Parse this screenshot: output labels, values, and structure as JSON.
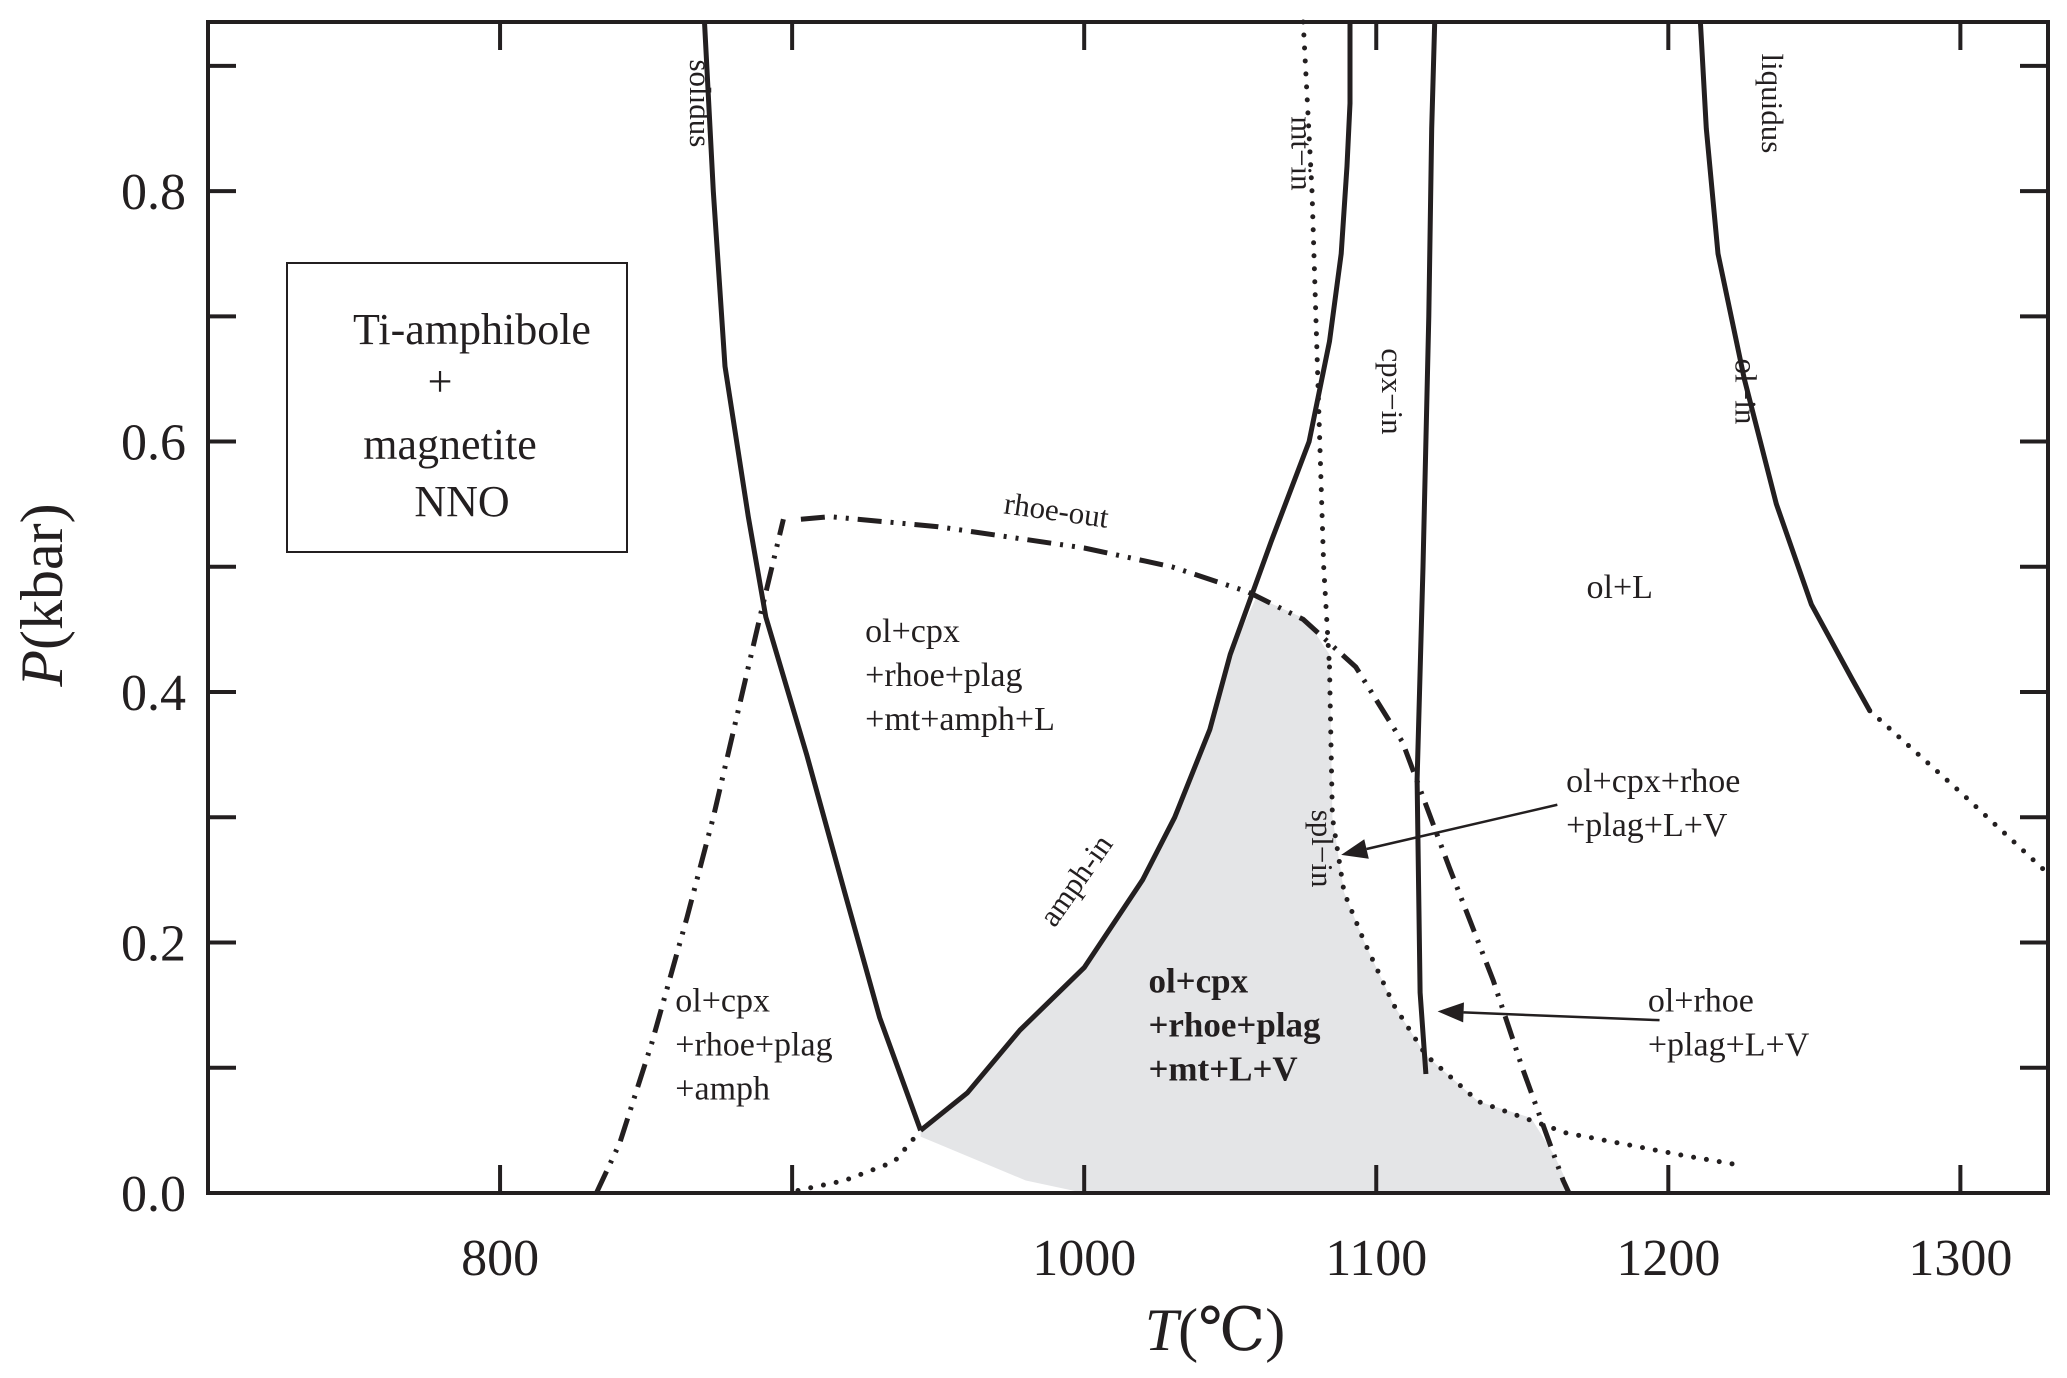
{
  "chart_data": {
    "type": "phase-diagram",
    "title": "",
    "xlabel": {
      "symbol": "T",
      "unit": "(℃)"
    },
    "ylabel": {
      "symbol": "P",
      "unit": "(kbar)"
    },
    "xlim": [
      700,
      1330
    ],
    "ylim": [
      0,
      0.935
    ],
    "x_ticks": [
      800,
      1000,
      1100,
      1200,
      1300
    ],
    "y_ticks": [
      0.0,
      0.2,
      0.4,
      0.6,
      0.8
    ],
    "x_tick_labels": [
      "800",
      "1000",
      "1100",
      "1200",
      "1300"
    ],
    "y_tick_labels": [
      "0.0",
      "0.2",
      "0.4",
      "0.6",
      "0.8"
    ],
    "legend": {
      "line1": "Ti-amphibole",
      "line2": "+",
      "line3": "magnetite",
      "line4": "NNO",
      "placement": "upper-left"
    },
    "curves": [
      {
        "name": "solidus",
        "style": "solid",
        "points": [
          [
            870,
            0.935
          ],
          [
            873,
            0.8
          ],
          [
            877,
            0.66
          ],
          [
            885,
            0.54
          ],
          [
            891,
            0.46
          ],
          [
            905,
            0.35
          ],
          [
            918,
            0.24
          ],
          [
            930,
            0.14
          ],
          [
            944,
            0.05
          ]
        ]
      },
      {
        "name": "amph-in",
        "style": "solid",
        "points": [
          [
            944,
            0.05
          ],
          [
            960,
            0.08
          ],
          [
            978,
            0.13
          ],
          [
            1000,
            0.18
          ],
          [
            1020,
            0.25
          ],
          [
            1031,
            0.3
          ],
          [
            1043,
            0.37
          ],
          [
            1050,
            0.43
          ],
          [
            1064,
            0.52
          ],
          [
            1077,
            0.6
          ],
          [
            1084,
            0.68
          ],
          [
            1088,
            0.75
          ],
          [
            1090,
            0.82
          ],
          [
            1091,
            0.87
          ],
          [
            1091,
            0.935
          ]
        ]
      },
      {
        "name": "cpx-in",
        "style": "solid",
        "points": [
          [
            1117,
            0.095
          ],
          [
            1115,
            0.16
          ],
          [
            1114,
            0.33
          ],
          [
            1116,
            0.5
          ],
          [
            1118,
            0.7
          ],
          [
            1119,
            0.85
          ],
          [
            1120,
            0.935
          ]
        ]
      },
      {
        "name": "liquidus",
        "style": "solid",
        "points": [
          [
            1211,
            0.935
          ],
          [
            1213,
            0.85
          ],
          [
            1217,
            0.75
          ],
          [
            1226,
            0.65
          ],
          [
            1237,
            0.55
          ],
          [
            1249,
            0.47
          ],
          [
            1263,
            0.41
          ],
          [
            1269,
            0.385
          ]
        ]
      },
      {
        "name": "liquidus-extension",
        "style": "dotted",
        "points": [
          [
            1269,
            0.385
          ],
          [
            1300,
            0.32
          ],
          [
            1330,
            0.255
          ]
        ]
      },
      {
        "name": "mt-in",
        "style": "dotted",
        "points": [
          [
            1075,
            0.935
          ],
          [
            1078,
            0.8
          ],
          [
            1080,
            0.65
          ],
          [
            1082,
            0.5
          ],
          [
            1084,
            0.42
          ]
        ]
      },
      {
        "name": "spl-in",
        "style": "dotted",
        "points": [
          [
            1084,
            0.42
          ],
          [
            1085,
            0.3
          ],
          [
            1089,
            0.24
          ],
          [
            1096,
            0.2
          ],
          [
            1106,
            0.15
          ],
          [
            1117,
            0.11
          ],
          [
            1135,
            0.073
          ],
          [
            1165,
            0.048
          ],
          [
            1205,
            0.03
          ],
          [
            1225,
            0.022
          ]
        ]
      },
      {
        "name": "amph-in-extension",
        "style": "dotted",
        "points": [
          [
            902,
            0.002
          ],
          [
            918,
            0.01
          ],
          [
            935,
            0.025
          ],
          [
            944,
            0.05
          ]
        ]
      },
      {
        "name": "rhoe-out",
        "style": "dash-dot-dot",
        "points": [
          [
            903,
            0.538
          ],
          [
            913,
            0.54
          ],
          [
            950,
            0.532
          ],
          [
            1000,
            0.515
          ],
          [
            1030,
            0.5
          ],
          [
            1056,
            0.48
          ],
          [
            1075,
            0.458
          ],
          [
            1093,
            0.42
          ],
          [
            1109,
            0.36
          ],
          [
            1125,
            0.26
          ],
          [
            1140,
            0.17
          ],
          [
            1150,
            0.1
          ],
          [
            1164,
            0.01
          ],
          [
            1166,
            0
          ]
        ]
      },
      {
        "name": "amph-out",
        "style": "dash-dot-dot",
        "points": [
          [
            833,
            0.0
          ],
          [
            841,
            0.04
          ],
          [
            852,
            0.12
          ],
          [
            864,
            0.22
          ],
          [
            873,
            0.3
          ],
          [
            882,
            0.39
          ],
          [
            889,
            0.46
          ],
          [
            897,
            0.538
          ]
        ]
      }
    ],
    "shaded_region": {
      "label": "ol+cpx +rhoe+plag +mt+L+V",
      "color": "#e4e5e7",
      "points": [
        [
          944,
          0.05
        ],
        [
          960,
          0.08
        ],
        [
          978,
          0.13
        ],
        [
          1000,
          0.18
        ],
        [
          1020,
          0.25
        ],
        [
          1031,
          0.3
        ],
        [
          1043,
          0.37
        ],
        [
          1050,
          0.43
        ],
        [
          1059,
          0.476
        ],
        [
          1076,
          0.458
        ],
        [
          1084,
          0.43
        ],
        [
          1085,
          0.3
        ],
        [
          1089,
          0.24
        ],
        [
          1096,
          0.2
        ],
        [
          1106,
          0.15
        ],
        [
          1117,
          0.11
        ],
        [
          1135,
          0.073
        ],
        [
          1153,
          0.06
        ],
        [
          1161,
          0.03
        ],
        [
          1167,
          0.0
        ],
        [
          1000,
          0.0
        ],
        [
          980,
          0.01
        ],
        [
          944,
          0.045
        ]
      ]
    },
    "curve_labels": [
      {
        "text": "solidus",
        "x": 865,
        "y": 0.87,
        "rotation": 90
      },
      {
        "text": "mt−in",
        "x": 1071,
        "y": 0.83,
        "rotation": 90
      },
      {
        "text": "cpx−in",
        "x": 1102,
        "y": 0.64,
        "rotation": 90
      },
      {
        "text": "liquidus",
        "x": 1232,
        "y": 0.87,
        "rotation": 90
      },
      {
        "text": "ol−in",
        "x": 1223,
        "y": 0.64,
        "rotation": 90
      },
      {
        "text": "rhoe-out",
        "x": 990,
        "y": 0.537,
        "rotation": 8
      },
      {
        "text": "amph-in",
        "x": 1000,
        "y": 0.245,
        "rotation": -55
      },
      {
        "text": "spl−in",
        "x": 1078,
        "y": 0.275,
        "rotation": 90
      }
    ],
    "region_labels": [
      {
        "lines": [
          "ol+cpx",
          "+rhoe+plag",
          "+mt+amph+L"
        ],
        "x": 925,
        "y": 0.44,
        "bold": false
      },
      {
        "lines": [
          "ol+L"
        ],
        "x": 1172,
        "y": 0.475,
        "bold": false
      },
      {
        "lines": [
          "ol+cpx",
          "+rhoe+plag",
          "+amph"
        ],
        "x": 860,
        "y": 0.145,
        "bold": false
      },
      {
        "lines": [
          "ol+cpx",
          "+rhoe+plag",
          "+mt+L+V"
        ],
        "x": 1022,
        "y": 0.16,
        "bold": true
      },
      {
        "lines": [
          "ol+cpx+rhoe",
          "+plag+L+V"
        ],
        "x": 1165,
        "y": 0.32,
        "bold": false
      },
      {
        "lines": [
          "ol+rhoe",
          "+plag+L+V"
        ],
        "x": 1193,
        "y": 0.145,
        "bold": false
      }
    ],
    "arrows": [
      {
        "from": [
          1162,
          0.31
        ],
        "to": [
          1088,
          0.27
        ]
      },
      {
        "from": [
          1197,
          0.138
        ],
        "to": [
          1121,
          0.145
        ]
      }
    ]
  }
}
